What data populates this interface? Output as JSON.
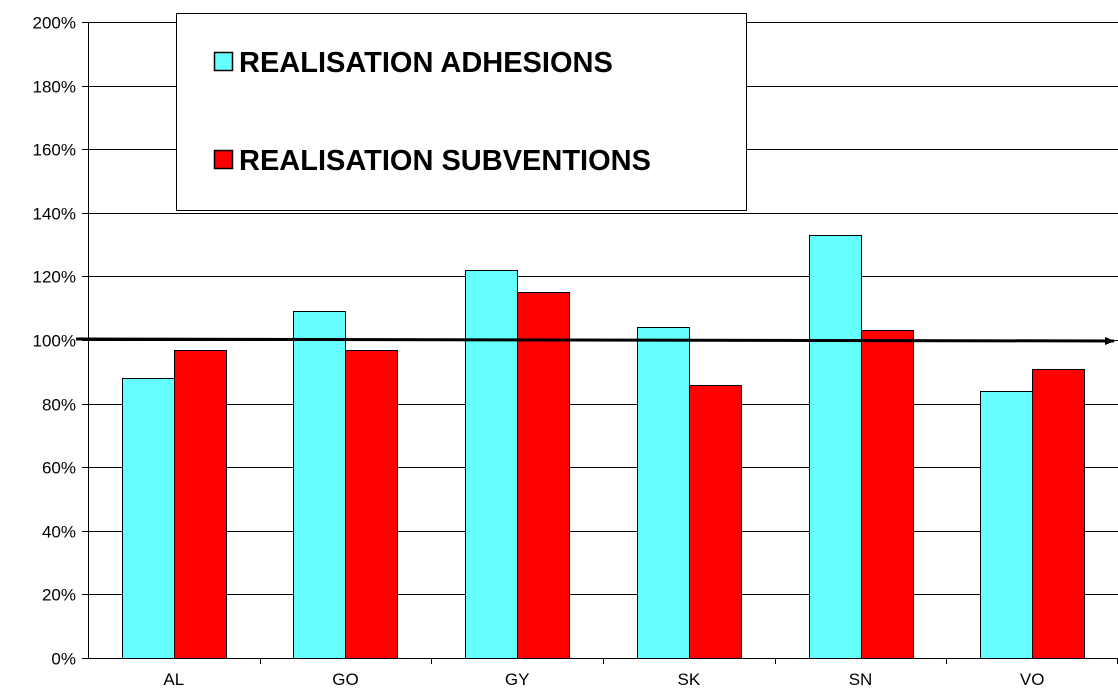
{
  "chart_data": {
    "type": "bar",
    "categories": [
      "AL",
      "GO",
      "GY",
      "SK",
      "SN",
      "VO"
    ],
    "series": [
      {
        "name": "REALISATION ADHESIONS",
        "values": [
          88,
          109,
          122,
          104,
          133,
          84
        ],
        "color": "#66ffff"
      },
      {
        "name": "REALISATION SUBVENTIONS",
        "values": [
          97,
          97,
          115,
          86,
          103,
          91
        ],
        "color": "#ff0000"
      }
    ],
    "y_ticks": [
      0,
      20,
      40,
      60,
      80,
      100,
      120,
      140,
      160,
      180,
      200
    ],
    "y_tick_labels": [
      "0%",
      "20%",
      "40%",
      "60%",
      "80%",
      "100%",
      "120%",
      "140%",
      "160%",
      "180%",
      "200%"
    ],
    "ylim": [
      0,
      200
    ],
    "grid": true,
    "legend_position": "top-left",
    "reference_line": {
      "y": 100,
      "style": "arrow"
    },
    "title": "",
    "xlabel": "",
    "ylabel": ""
  }
}
